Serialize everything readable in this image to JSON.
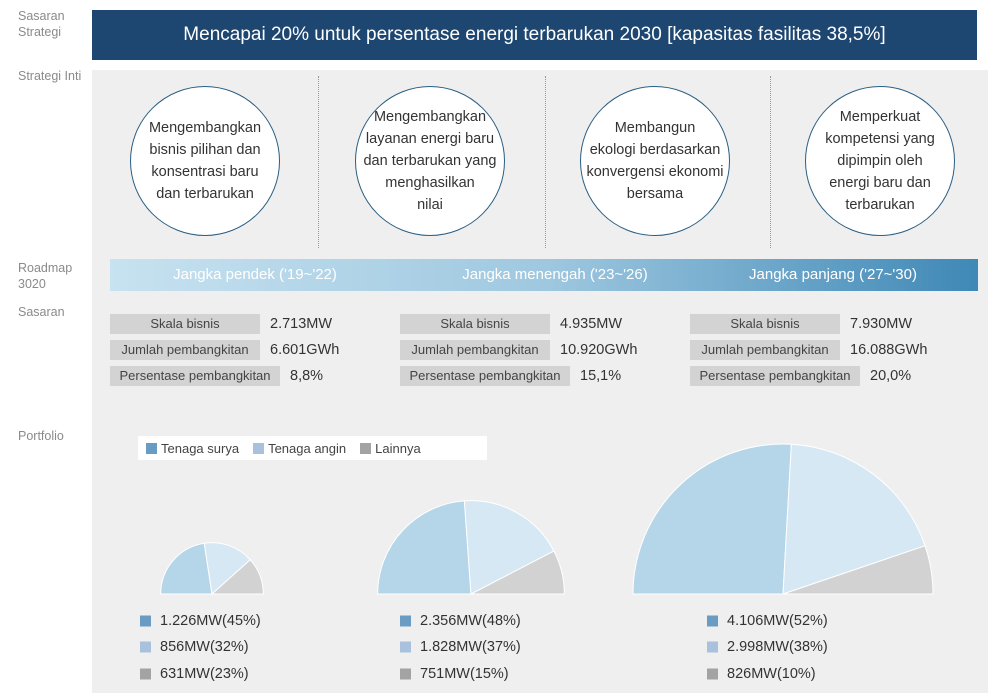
{
  "sidebar": {
    "goal": "Sasaran Strategi",
    "core": "Strategi Inti",
    "roadmap": "Roadmap 3020",
    "targets": "Sasaran",
    "portfolio": "Portfolio"
  },
  "header": {
    "title": "Mencapai 20% untuk persentase energi terbarukan 2030 [kapasitas fasilitas 38,5%]"
  },
  "strategies": [
    [
      "Mengembangkan",
      "bisnis pilihan dan",
      "konsentrasi baru",
      "dan terbarukan"
    ],
    [
      "Mengembangkan",
      "layanan energi baru",
      "dan terbarukan yang",
      "menghasilkan",
      "nilai"
    ],
    [
      "Membangun",
      "ekologi berdasarkan",
      "konvergensi ekonomi",
      "bersama"
    ],
    [
      "Memperkuat",
      "kompetensi yang",
      "dipimpin oleh",
      "energi baru dan",
      "terbarukan"
    ]
  ],
  "roadmap": {
    "phases": [
      "Jangka pendek ('19~'22)",
      "Jangka menengah ('23~'26)",
      "Jangka panjang ('27~'30)"
    ]
  },
  "targets": {
    "labels": [
      "Skala bisnis",
      "Jumlah pembangkitan",
      "Persentase pembangkitan"
    ],
    "values": [
      [
        "2.713MW",
        "6.601GWh",
        "8,8%"
      ],
      [
        "4.935MW",
        "10.920GWh",
        "15,1%"
      ],
      [
        "7.930MW",
        "16.088GWh",
        "20,0%"
      ]
    ]
  },
  "chart_data": {
    "type": "pie",
    "series": [
      {
        "name": "Tenaga surya",
        "color": "#b5d6e9"
      },
      {
        "name": "Tenaga angin",
        "color": "#d5e8f4"
      },
      {
        "name": "Lainnya",
        "color": "#d2d2d2"
      }
    ],
    "legend_colors": [
      "#6a9bc3",
      "#a9c1dc",
      "#a3a3a3"
    ],
    "pies": [
      {
        "values": [
          1226,
          856,
          631
        ],
        "value_labels": [
          "1.226MW(45%)",
          "856MW(32%)",
          "631MW(23%)"
        ]
      },
      {
        "values": [
          2356,
          1828,
          751
        ],
        "value_labels": [
          "2.356MW(48%)",
          "1.828MW(37%)",
          "751MW(15%)"
        ]
      },
      {
        "values": [
          4106,
          2998,
          826
        ],
        "value_labels": [
          "4.106MW(52%)",
          "2.998MW(38%)",
          "826MW(10%)"
        ]
      }
    ]
  }
}
